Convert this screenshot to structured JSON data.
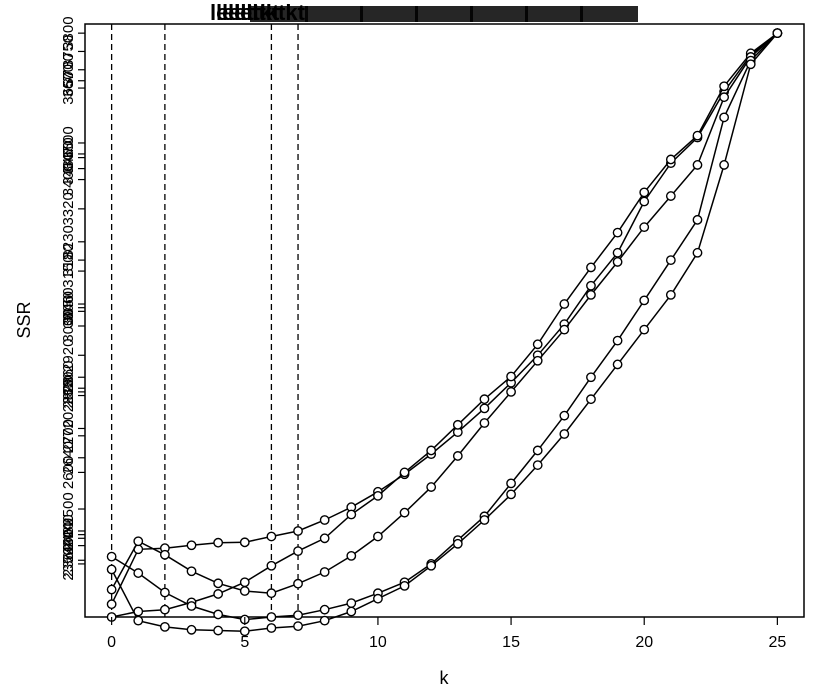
{
  "chart_data": {
    "type": "line",
    "title": "",
    "xlabel": "k",
    "ylabel": "SSR",
    "xlim": [
      -1,
      26
    ],
    "ylim": [
      2205,
      3825
    ],
    "x_ticks": [
      0,
      5,
      10,
      15,
      20,
      25
    ],
    "y_tick_labels": [
      "3800",
      "3750",
      "3700",
      "3670",
      "3650",
      "3500",
      "3470",
      "3460",
      "3430",
      "3400",
      "3320",
      "3230",
      "3180",
      "3150",
      "3060",
      "3050",
      "3040",
      "3000",
      "2920",
      "2860",
      "2830",
      "2820",
      "2810",
      "2720",
      "2700",
      "2640",
      "2600",
      "2500",
      "2440",
      "2430",
      "2420",
      "2400",
      "2360",
      "2350"
    ],
    "vlines": [
      0,
      2,
      6,
      7
    ],
    "grid": false,
    "series": [
      {
        "x": [
          0,
          1,
          2,
          3,
          4,
          5,
          6,
          7,
          8,
          9,
          10,
          11,
          12,
          13,
          14,
          15,
          16,
          17,
          18,
          19,
          20,
          21,
          22,
          23,
          24,
          25
        ],
        "y": [
          2240,
          2390,
          2393,
          2401,
          2408,
          2409,
          2425,
          2440,
          2470,
          2505,
          2547,
          2595,
          2650,
          2710,
          2775,
          2845,
          2920,
          3005,
          3110,
          3200,
          3340,
          3445,
          3515,
          3640,
          3740,
          3800
        ]
      },
      {
        "x": [
          0,
          1,
          2,
          3,
          4,
          5,
          6,
          7,
          8,
          9,
          10,
          11,
          12,
          13,
          14,
          15,
          16,
          17,
          18,
          19,
          20,
          21,
          22,
          23,
          24,
          25
        ],
        "y": [
          2205,
          2220,
          2225,
          2245,
          2268,
          2300,
          2345,
          2385,
          2420,
          2485,
          2536,
          2600,
          2660,
          2730,
          2800,
          2862,
          2950,
          3060,
          3160,
          3255,
          3365,
          3455,
          3520,
          3655,
          3745,
          3800
        ]
      },
      {
        "x": [
          0,
          1,
          2,
          3,
          4,
          5,
          6,
          7,
          8,
          9,
          10,
          11,
          12,
          13,
          14,
          15,
          16,
          17,
          18,
          19,
          20,
          21,
          22,
          23,
          24,
          25
        ],
        "y": [
          2280,
          2412,
          2375,
          2330,
          2297,
          2276,
          2270,
          2296,
          2328,
          2372,
          2425,
          2490,
          2560,
          2645,
          2735,
          2820,
          2905,
          2990,
          3085,
          3175,
          3270,
          3355,
          3440,
          3625,
          3735,
          3800
        ]
      },
      {
        "x": [
          0,
          1,
          2,
          3,
          4,
          5,
          6,
          7,
          8,
          9,
          10,
          11,
          12,
          13,
          14,
          15,
          16,
          17,
          18,
          19,
          20,
          21,
          22,
          23,
          24,
          25
        ],
        "y": [
          2370,
          2325,
          2272,
          2235,
          2212,
          2198,
          2205,
          2210,
          2225,
          2243,
          2270,
          2300,
          2350,
          2415,
          2480,
          2570,
          2660,
          2755,
          2860,
          2960,
          3070,
          3180,
          3290,
          3570,
          3725,
          3800
        ]
      },
      {
        "x": [
          0,
          1,
          2,
          3,
          4,
          5,
          6,
          7,
          8,
          9,
          10,
          11,
          12,
          13,
          14,
          15,
          16,
          17,
          18,
          19,
          20,
          21,
          22,
          23,
          24,
          25
        ],
        "y": [
          2335,
          2195,
          2178,
          2170,
          2168,
          2166,
          2175,
          2180,
          2195,
          2220,
          2255,
          2290,
          2345,
          2405,
          2470,
          2540,
          2620,
          2705,
          2800,
          2895,
          2990,
          3085,
          3200,
          3440,
          3715,
          3800
        ]
      }
    ]
  }
}
